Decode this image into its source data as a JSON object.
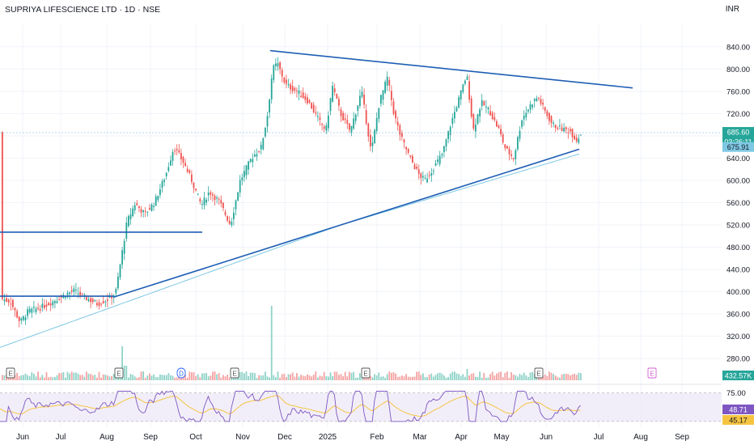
{
  "header": {
    "title": "SUPRIYA LIFESCIENCE LTD · 1D · NSE",
    "currency": "INR"
  },
  "chart_data": {
    "type": "candlestick",
    "symbol": "SUPRIYA LIFESCIENCE LTD",
    "interval": "1D",
    "exchange": "NSE",
    "price_axis": {
      "ticks": [
        280,
        320,
        360,
        400,
        440,
        480,
        520,
        560,
        600,
        640,
        680,
        720,
        760,
        800,
        840
      ],
      "range": [
        268,
        860
      ]
    },
    "x_ticks": [
      "Jun",
      "Jul",
      "Aug",
      "Sep",
      "Oct",
      "Nov",
      "Dec",
      "2025",
      "Feb",
      "Mar",
      "Apr",
      "May",
      "Jun",
      "Jul",
      "Aug",
      "Sep"
    ],
    "last_price": "685.60",
    "countdown": "03:26:11",
    "ma_value": "675.91",
    "volume_label": "432.57K",
    "rsi": {
      "value": "48.71",
      "ma": "45.17",
      "levels": [
        75.0,
        45.17
      ],
      "band_label": "75.00"
    },
    "earnings_markers": [
      "E",
      "E",
      "D",
      "E",
      "E",
      "E",
      "E"
    ],
    "trendlines": [
      {
        "name": "upper-resistance",
        "from": [
          "Nov 25",
          833
        ],
        "to": [
          "Jul 20",
          766
        ]
      },
      {
        "name": "lower-support",
        "from": [
          "Aug 8",
          390
        ],
        "to": [
          "Jun 24",
          655
        ]
      },
      {
        "name": "old-resistance",
        "from": [
          "May",
          507
        ],
        "to": [
          "Oct",
          507
        ]
      },
      {
        "name": "base-level",
        "from": [
          "May",
          392
        ],
        "to": [
          "Aug 8",
          392
        ]
      }
    ],
    "price_path": [
      {
        "t": "May end",
        "close": 385
      },
      {
        "t": "Jun",
        "close": 360
      },
      {
        "t": "Jun mid",
        "close": 395
      },
      {
        "t": "Jul",
        "close": 405
      },
      {
        "t": "Jul mid",
        "close": 395
      },
      {
        "t": "Aug",
        "close": 400
      },
      {
        "t": "Aug mid",
        "close": 510
      },
      {
        "t": "Aug end",
        "close": 570
      },
      {
        "t": "Sep",
        "close": 600
      },
      {
        "t": "Sep mid",
        "close": 660
      },
      {
        "t": "Oct",
        "close": 560
      },
      {
        "t": "Oct mid",
        "close": 530
      },
      {
        "t": "Nov",
        "close": 640
      },
      {
        "t": "Nov mid",
        "close": 700
      },
      {
        "t": "Nov end",
        "close": 820
      },
      {
        "t": "Dec",
        "close": 780
      },
      {
        "t": "Dec mid",
        "close": 740
      },
      {
        "t": "2025",
        "close": 770
      },
      {
        "t": "Jan mid",
        "close": 690
      },
      {
        "t": "Feb",
        "close": 760
      },
      {
        "t": "Feb mid",
        "close": 660
      },
      {
        "t": "Mar",
        "close": 600
      },
      {
        "t": "Mar mid",
        "close": 640
      },
      {
        "t": "Apr",
        "close": 790
      },
      {
        "t": "Apr mid",
        "close": 700
      },
      {
        "t": "May",
        "close": 640
      },
      {
        "t": "May mid",
        "close": 720
      },
      {
        "t": "Jun",
        "close": 750
      },
      {
        "t": "Jun mid",
        "close": 690
      },
      {
        "t": "Jun end",
        "close": 685
      }
    ],
    "colors": {
      "up": "#26a69a",
      "down": "#ef5350",
      "trendline": "#1e5eb4",
      "ma": "#7ec8e3",
      "rsi": "#7e57c2",
      "rsi_ma": "#f5c542",
      "grid": "#f0f3fa"
    }
  }
}
